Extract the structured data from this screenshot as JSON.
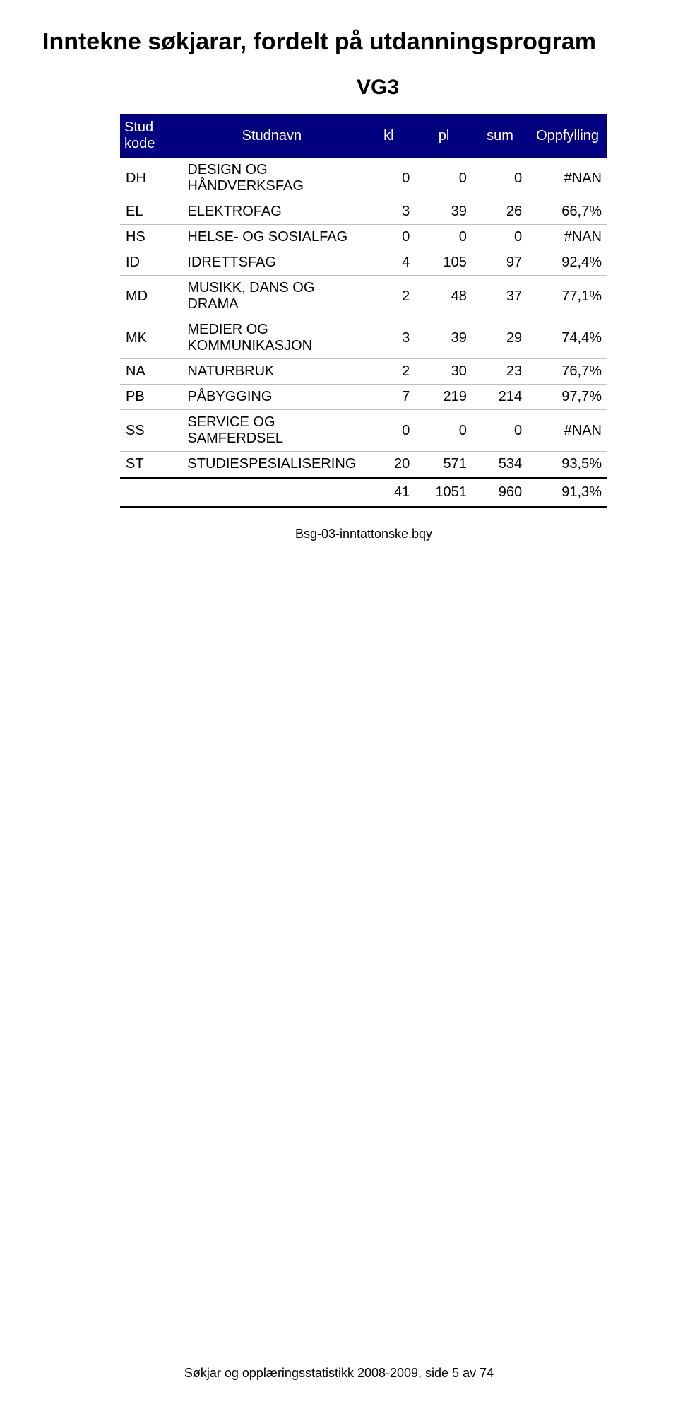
{
  "title": "Inntekne søkjarar, fordelt på utdanningsprogram",
  "subtitle": "VG3",
  "columns": [
    "Stud kode",
    "Studnavn",
    "kl",
    "pl",
    "sum",
    "Oppfylling"
  ],
  "rows": [
    {
      "code": "DH",
      "name": "DESIGN OG HÅNDVERKSFAG",
      "kl": "0",
      "pl": "0",
      "sum": "0",
      "opp": "#NAN"
    },
    {
      "code": "EL",
      "name": "ELEKTROFAG",
      "kl": "3",
      "pl": "39",
      "sum": "26",
      "opp": "66,7%"
    },
    {
      "code": "HS",
      "name": "HELSE- OG SOSIALFAG",
      "kl": "0",
      "pl": "0",
      "sum": "0",
      "opp": "#NAN"
    },
    {
      "code": "ID",
      "name": "IDRETTSFAG",
      "kl": "4",
      "pl": "105",
      "sum": "97",
      "opp": "92,4%"
    },
    {
      "code": "MD",
      "name": "MUSIKK, DANS OG DRAMA",
      "kl": "2",
      "pl": "48",
      "sum": "37",
      "opp": "77,1%"
    },
    {
      "code": "MK",
      "name": "MEDIER OG KOMMUNIKASJON",
      "kl": "3",
      "pl": "39",
      "sum": "29",
      "opp": "74,4%"
    },
    {
      "code": "NA",
      "name": "NATURBRUK",
      "kl": "2",
      "pl": "30",
      "sum": "23",
      "opp": "76,7%"
    },
    {
      "code": "PB",
      "name": "PÅBYGGING",
      "kl": "7",
      "pl": "219",
      "sum": "214",
      "opp": "97,7%"
    },
    {
      "code": "SS",
      "name": "SERVICE OG SAMFERDSEL",
      "kl": "0",
      "pl": "0",
      "sum": "0",
      "opp": "#NAN"
    },
    {
      "code": "ST",
      "name": "STUDIESPESIALISERING",
      "kl": "20",
      "pl": "571",
      "sum": "534",
      "opp": "93,5%"
    }
  ],
  "totals": {
    "kl": "41",
    "pl": "1051",
    "sum": "960",
    "opp": "91,3%"
  },
  "caption": "Bsg-03-inntattonske.bqy",
  "footer": "Søkjar og opplæringsstatistikk 2008-2009, side 5 av 74",
  "style": {
    "header_bg": "#000080",
    "header_fg": "#ffffff",
    "row_border": "#bfbfbf",
    "total_border": "#000000",
    "font_body": 20,
    "font_title": 34,
    "font_subtitle": 30
  }
}
